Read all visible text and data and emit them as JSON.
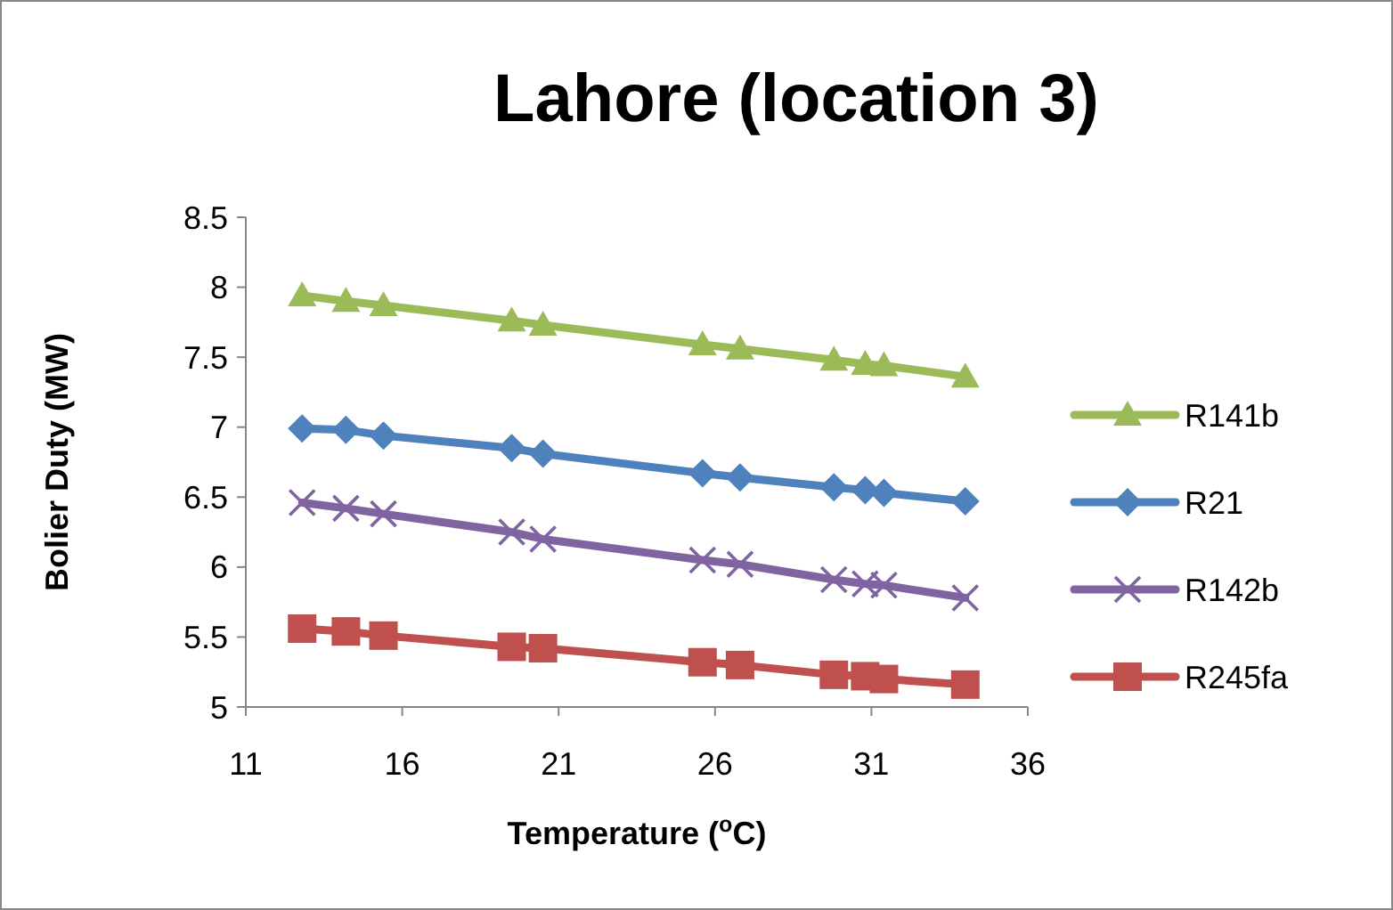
{
  "chart_data": {
    "type": "line",
    "title": "Lahore (location 3)",
    "xlabel": "Temperature ($^{o}$C)",
    "ylabel": "Bolier Duty (MW)",
    "x": [
      12.8,
      14.2,
      15.4,
      19.5,
      20.5,
      25.6,
      26.8,
      29.8,
      30.8,
      31.4,
      34.0
    ],
    "series": [
      {
        "name": "R141b",
        "color": "#9bbb59",
        "marker": "triangle",
        "values": [
          7.94,
          7.9,
          7.87,
          7.76,
          7.73,
          7.59,
          7.56,
          7.48,
          7.45,
          7.44,
          7.36
        ]
      },
      {
        "name": "R21",
        "color": "#4f81bd",
        "marker": "diamond",
        "values": [
          6.99,
          6.98,
          6.94,
          6.85,
          6.81,
          6.67,
          6.64,
          6.57,
          6.55,
          6.53,
          6.47
        ]
      },
      {
        "name": "R142b",
        "color": "#8064a2",
        "marker": "cross",
        "values": [
          6.46,
          6.42,
          6.38,
          6.25,
          6.2,
          6.05,
          6.02,
          5.91,
          5.88,
          5.87,
          5.78
        ]
      },
      {
        "name": "R245fa",
        "color": "#c0504d",
        "marker": "square",
        "values": [
          5.56,
          5.54,
          5.51,
          5.43,
          5.42,
          5.32,
          5.3,
          5.23,
          5.22,
          5.2,
          5.16
        ]
      }
    ],
    "xlim": [
      11,
      36
    ],
    "xticks": [
      11,
      16,
      21,
      26,
      31,
      36
    ],
    "ylim": [
      5,
      8.5
    ],
    "yticks": [
      5,
      5.5,
      6,
      6.5,
      7,
      7.5,
      8,
      8.5
    ],
    "grid": false,
    "legend": "right",
    "line_style": "solid"
  }
}
